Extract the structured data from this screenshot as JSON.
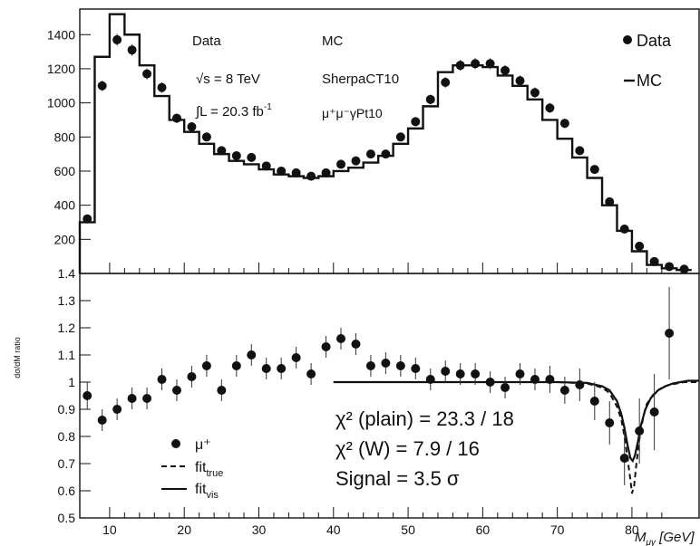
{
  "top_panel": {
    "ylim": [
      0,
      1550
    ],
    "yticks": [
      200,
      400,
      600,
      800,
      1000,
      1200,
      1400
    ],
    "text": {
      "data_header": "Data",
      "mc_header": "MC",
      "energy": "√s = 8 TeV",
      "lumi": "∫L = 20.3 fb",
      "lumi_sup": "-1",
      "generator": "SherpaCT10",
      "sample": "μ⁺μ⁻γPt10"
    },
    "legend": {
      "data": "Data",
      "mc": "MC",
      "position": "top-right"
    }
  },
  "bottom_panel": {
    "ylabel": "dσ/dM ratio",
    "ylim": [
      0.5,
      1.4
    ],
    "yticks": [
      "0.5",
      "0.6",
      "0.7",
      "0.8",
      "0.9",
      "1",
      "1.1",
      "1.2",
      "1.3",
      "1.4"
    ],
    "legend": {
      "mu": "μ⁺",
      "fit_true": "fit",
      "fit_true_sub": "true",
      "fit_vis": "fit",
      "fit_vis_sub": "vis",
      "position": "bottom-left"
    },
    "stats": {
      "chi2_plain": "χ² (plain) = 23.3 / 18",
      "chi2_w": "χ² (W) = 7.9 / 16",
      "signal": "Signal = 3.5 σ"
    }
  },
  "x_axis": {
    "xlim": [
      6,
      89
    ],
    "ticks": [
      "10",
      "20",
      "30",
      "40",
      "50",
      "60",
      "70",
      "80"
    ],
    "label": "M",
    "label_sub": "μγ",
    "label_unit": " [GeV]"
  },
  "chart_data": [
    {
      "type": "line",
      "panel": "top",
      "series": [
        {
          "name": "Data",
          "style": "points",
          "x": [
            7,
            9,
            11,
            13,
            15,
            17,
            19,
            21,
            23,
            25,
            27,
            29,
            31,
            33,
            35,
            37,
            39,
            41,
            43,
            45,
            47,
            49,
            51,
            53,
            55,
            57,
            59,
            61,
            63,
            65,
            67,
            69,
            71,
            73,
            75,
            77,
            79,
            81,
            83,
            85,
            87
          ],
          "values": [
            320,
            1100,
            1370,
            1310,
            1170,
            1090,
            910,
            860,
            800,
            720,
            690,
            680,
            630,
            600,
            590,
            570,
            590,
            640,
            660,
            700,
            700,
            800,
            890,
            1020,
            1120,
            1220,
            1230,
            1230,
            1190,
            1130,
            1060,
            970,
            880,
            720,
            610,
            420,
            260,
            160,
            70,
            40,
            25
          ],
          "errors": [
            18,
            30,
            35,
            34,
            32,
            31,
            28,
            27,
            26,
            25,
            24,
            24,
            23,
            23,
            22,
            22,
            22,
            23,
            23,
            24,
            24,
            26,
            27,
            29,
            31,
            32,
            32,
            32,
            32,
            31,
            30,
            29,
            28,
            25,
            23,
            19,
            15,
            12,
            8,
            6,
            5
          ]
        },
        {
          "name": "MC",
          "style": "step",
          "bin_edges": [
            6,
            8,
            10,
            12,
            14,
            16,
            18,
            20,
            22,
            24,
            26,
            28,
            30,
            32,
            34,
            36,
            38,
            40,
            42,
            44,
            46,
            48,
            50,
            52,
            54,
            56,
            58,
            60,
            62,
            64,
            66,
            68,
            70,
            72,
            74,
            76,
            78,
            80,
            82,
            84,
            86,
            88
          ],
          "values": [
            300,
            1270,
            1520,
            1400,
            1220,
            1040,
            900,
            830,
            760,
            700,
            660,
            640,
            610,
            580,
            570,
            560,
            570,
            600,
            620,
            650,
            690,
            760,
            850,
            980,
            1180,
            1220,
            1220,
            1210,
            1160,
            1100,
            1020,
            900,
            790,
            680,
            560,
            400,
            250,
            130,
            50,
            30,
            20
          ]
        }
      ]
    },
    {
      "type": "line",
      "panel": "bottom",
      "series": [
        {
          "name": "μ⁺",
          "style": "points",
          "x": [
            7,
            9,
            11,
            13,
            15,
            17,
            19,
            21,
            23,
            25,
            27,
            29,
            31,
            33,
            35,
            37,
            39,
            41,
            43,
            45,
            47,
            49,
            51,
            53,
            55,
            57,
            59,
            61,
            63,
            65,
            67,
            69,
            71,
            73,
            75,
            77,
            79,
            81,
            83,
            85
          ],
          "values": [
            0.95,
            0.86,
            0.9,
            0.94,
            0.94,
            1.01,
            0.97,
            1.02,
            1.06,
            0.97,
            1.06,
            1.1,
            1.05,
            1.05,
            1.09,
            1.03,
            1.13,
            1.16,
            1.14,
            1.06,
            1.07,
            1.06,
            1.05,
            1.01,
            1.04,
            1.03,
            1.03,
            1.0,
            0.98,
            1.03,
            1.01,
            1.01,
            0.97,
            0.99,
            0.93,
            0.85,
            0.72,
            0.82,
            0.89,
            1.18
          ],
          "errors": [
            0.05,
            0.04,
            0.04,
            0.04,
            0.04,
            0.04,
            0.04,
            0.04,
            0.04,
            0.04,
            0.04,
            0.04,
            0.04,
            0.04,
            0.04,
            0.04,
            0.04,
            0.04,
            0.04,
            0.04,
            0.04,
            0.04,
            0.04,
            0.04,
            0.04,
            0.04,
            0.04,
            0.04,
            0.04,
            0.04,
            0.04,
            0.05,
            0.05,
            0.06,
            0.07,
            0.08,
            0.1,
            0.12,
            0.14,
            0.17
          ]
        },
        {
          "name": "fit true",
          "style": "dashed",
          "x": [
            40,
            50,
            60,
            70,
            74,
            76,
            77,
            78,
            78.6,
            79,
            79.4,
            79.8,
            80,
            80.3,
            80.6,
            81,
            81.5,
            82,
            83,
            84,
            85,
            86,
            87,
            88,
            89
          ],
          "values": [
            1.0,
            1.0,
            1.0,
            1.0,
            0.995,
            0.98,
            0.96,
            0.91,
            0.86,
            0.8,
            0.72,
            0.64,
            0.59,
            0.62,
            0.7,
            0.79,
            0.87,
            0.92,
            0.96,
            0.98,
            0.99,
            0.995,
            1.0,
            1.0,
            1.0
          ]
        },
        {
          "name": "fit vis",
          "style": "solid",
          "x": [
            40,
            50,
            60,
            70,
            74,
            76,
            77,
            78,
            78.6,
            79,
            79.4,
            79.8,
            80.1,
            80.4,
            80.8,
            81.2,
            81.8,
            82.5,
            83.5,
            84.5,
            85.5,
            86.5,
            87.5,
            88.5,
            89
          ],
          "values": [
            1.0,
            1.0,
            1.0,
            1.0,
            0.997,
            0.985,
            0.97,
            0.93,
            0.88,
            0.83,
            0.77,
            0.72,
            0.71,
            0.73,
            0.78,
            0.84,
            0.9,
            0.94,
            0.97,
            0.985,
            0.995,
            1.0,
            1.005,
            1.005,
            1.005
          ]
        }
      ]
    }
  ]
}
